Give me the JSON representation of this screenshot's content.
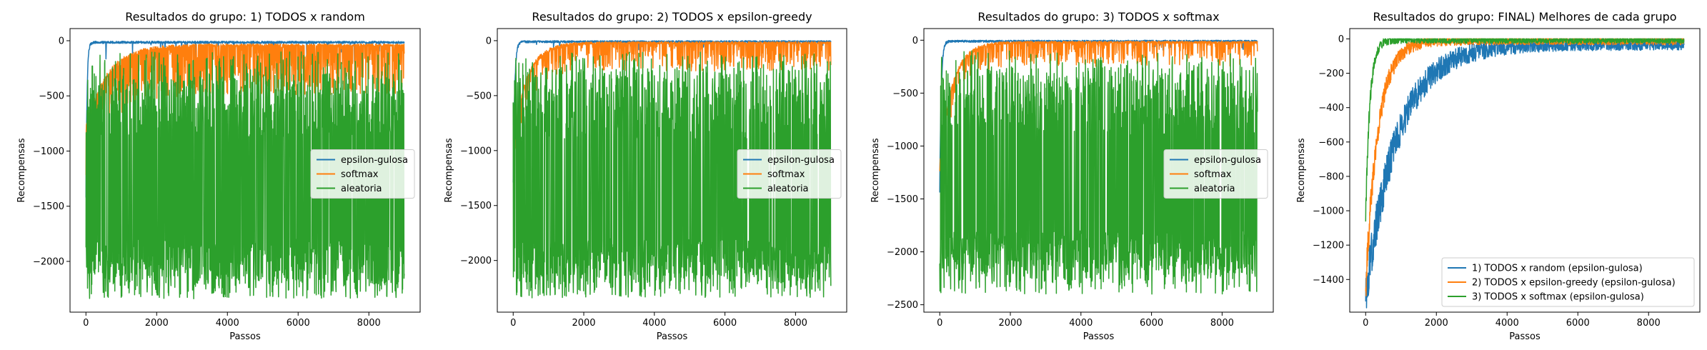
{
  "chart_data": [
    {
      "type": "line",
      "title": "Resultados do grupo: 1) TODOS x random",
      "xlabel": "Passos",
      "ylabel": "Recompensas",
      "xlim": [
        -450,
        9450
      ],
      "ylim": [
        -2460,
        110
      ],
      "xticks": [
        0,
        2000,
        4000,
        6000,
        8000
      ],
      "yticks": [
        0,
        -500,
        -1000,
        -1500,
        -2000
      ],
      "legend": "center-right",
      "series": [
        {
          "name": "epsilon-gulosa",
          "color": "#1f77b4",
          "x_range": [
            0,
            9000
          ],
          "start": -1400,
          "decay": 30,
          "floor": -15,
          "spike": 180,
          "spike_p": 0.03
        },
        {
          "name": "softmax",
          "color": "#ff7f0e",
          "x_range": [
            0,
            9000
          ],
          "start": -800,
          "decay": 600,
          "floor": -40,
          "spike": 450,
          "spike_p": 0.45
        },
        {
          "name": "aleatoria",
          "color": "#2ca02c",
          "x_range": [
            0,
            9000
          ],
          "noise_band": [
            -2200,
            -1800
          ],
          "top_band": [
            -900,
            -300
          ],
          "min": -2340
        }
      ]
    },
    {
      "type": "line",
      "title": "Resultados do grupo: 2) TODOS x epsilon-greedy",
      "xlabel": "Passos",
      "ylabel": "Recompensas",
      "xlim": [
        -450,
        9450
      ],
      "ylim": [
        -2470,
        110
      ],
      "xticks": [
        0,
        2000,
        4000,
        6000,
        8000
      ],
      "yticks": [
        0,
        -500,
        -1000,
        -1500,
        -2000
      ],
      "legend": "center-right",
      "series": [
        {
          "name": "epsilon-gulosa",
          "color": "#1f77b4",
          "x_range": [
            0,
            9000
          ],
          "start": -1300,
          "decay": 40,
          "floor": -10,
          "spike": 100,
          "spike_p": 0.02
        },
        {
          "name": "softmax",
          "color": "#ff7f0e",
          "x_range": [
            0,
            9000
          ],
          "start": -900,
          "decay": 400,
          "floor": -20,
          "spike": 250,
          "spike_p": 0.3
        },
        {
          "name": "aleatoria",
          "color": "#2ca02c",
          "x_range": [
            0,
            9000
          ],
          "noise_band": [
            -2200,
            -1800
          ],
          "top_band": [
            -900,
            -250
          ],
          "min": -2340
        }
      ]
    },
    {
      "type": "line",
      "title": "Resultados do grupo: 3) TODOS x softmax",
      "xlabel": "Passos",
      "ylabel": "Recompensas",
      "xlim": [
        -450,
        9450
      ],
      "ylim": [
        -2570,
        110
      ],
      "xticks": [
        0,
        2000,
        4000,
        6000,
        8000
      ],
      "yticks": [
        0,
        -500,
        -1000,
        -1500,
        -2000,
        -2500
      ],
      "legend": "center-right",
      "series": [
        {
          "name": "epsilon-gulosa",
          "color": "#1f77b4",
          "x_range": [
            0,
            9000
          ],
          "start": -1400,
          "decay": 40,
          "floor": -10,
          "spike": 90,
          "spike_p": 0.02
        },
        {
          "name": "softmax",
          "color": "#ff7f0e",
          "x_range": [
            0,
            9000
          ],
          "start": -1200,
          "decay": 350,
          "floor": -20,
          "spike": 220,
          "spike_p": 0.25
        },
        {
          "name": "aleatoria",
          "color": "#2ca02c",
          "x_range": [
            0,
            9000
          ],
          "noise_band": [
            -2200,
            -1800
          ],
          "top_band": [
            -900,
            -250
          ],
          "min": -2400
        }
      ]
    },
    {
      "type": "line",
      "title": "Resultados do grupo: FINAL) Melhores de cada grupo",
      "xlabel": "Passos",
      "ylabel": "Recompensas",
      "xlim": [
        -450,
        9450
      ],
      "ylim": [
        -1590,
        60
      ],
      "xticks": [
        0,
        2000,
        4000,
        6000,
        8000
      ],
      "yticks": [
        0,
        -200,
        -400,
        -600,
        -800,
        -1000,
        -1200,
        -1400
      ],
      "legend": "lower-right",
      "series": [
        {
          "name": "1) TODOS x random (epsilon-gulosa)",
          "color": "#1f77b4",
          "x_range": [
            0,
            9000
          ],
          "start": -1500,
          "decay": 900,
          "floor": -30,
          "spike": 0,
          "spike_p": 0,
          "noise": 35
        },
        {
          "name": "2) TODOS x epsilon-greedy (epsilon-gulosa)",
          "color": "#ff7f0e",
          "x_range": [
            0,
            9000
          ],
          "start": -1450,
          "decay": 350,
          "floor": -10,
          "spike": 0,
          "spike_p": 0,
          "noise": 25
        },
        {
          "name": "3) TODOS x softmax (epsilon-gulosa)",
          "color": "#2ca02c",
          "x_range": [
            0,
            9000
          ],
          "start": -1050,
          "decay": 120,
          "floor": -8,
          "spike": 0,
          "spike_p": 0,
          "noise": 18
        }
      ]
    }
  ]
}
